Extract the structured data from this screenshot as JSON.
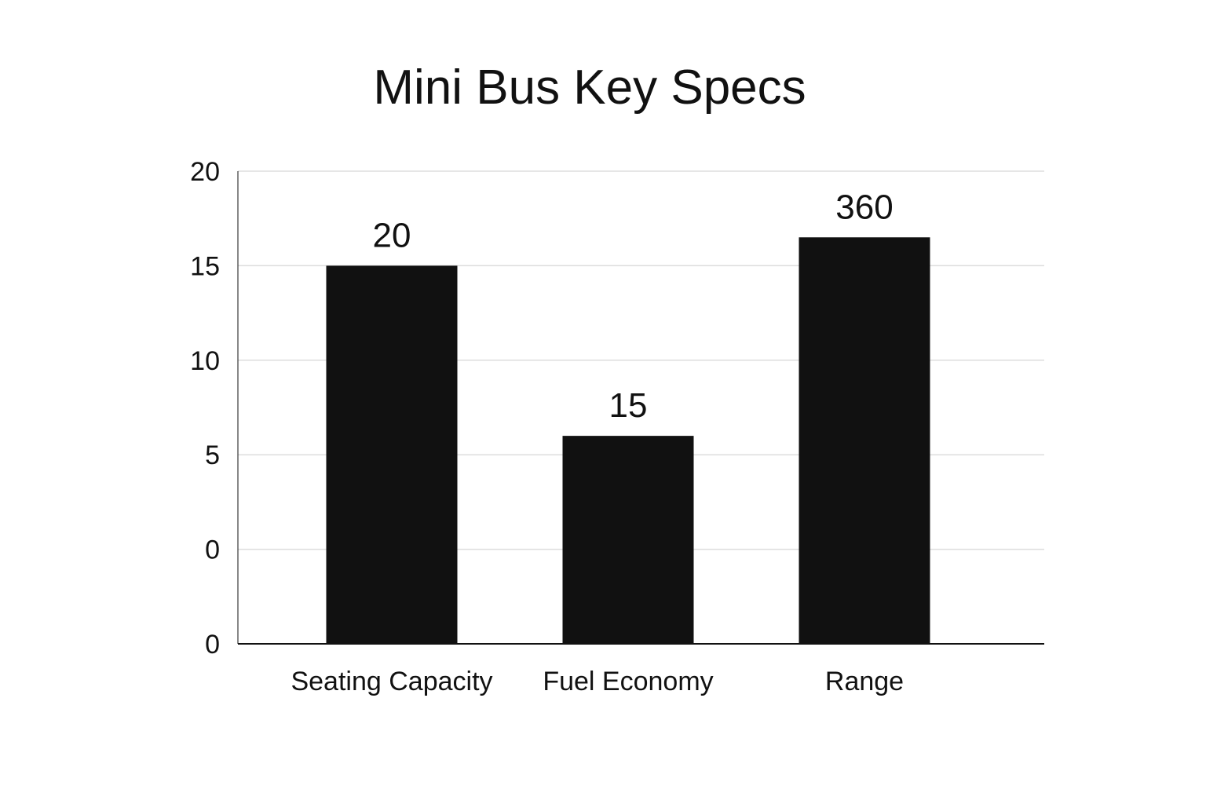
{
  "chart_data": {
    "type": "bar",
    "title": "Mini Bus Key Specs",
    "xlabel": "",
    "ylabel": "",
    "y_tick_labels": [
      "0",
      "0",
      "5",
      "10",
      "15",
      "20"
    ],
    "categories": [
      "Seating Capacity",
      "Fuel Economy",
      "Range"
    ],
    "values": [
      15,
      6,
      16.5
    ],
    "data_labels": [
      "20",
      "15",
      "360"
    ],
    "ylim": [
      -5,
      20
    ],
    "grid": true,
    "legend": "none",
    "colors": {
      "bar": "#111111",
      "grid": "#dddddd",
      "axis": "#111111"
    }
  }
}
